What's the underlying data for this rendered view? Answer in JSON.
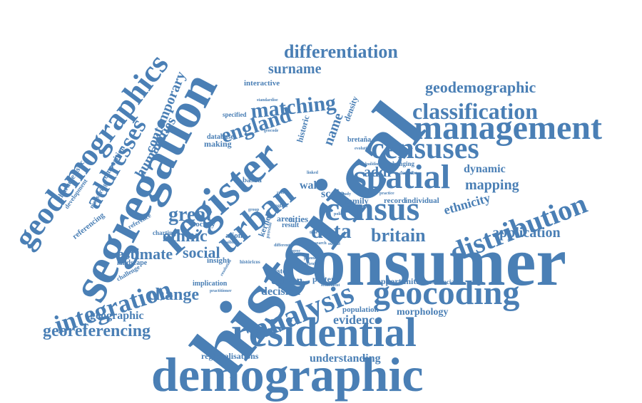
{
  "colors": {
    "text": "#4a7fb5",
    "background": "#ffffff"
  },
  "words": {
    "historical": "historical",
    "consumer": "consumer",
    "segregation": "segregation",
    "register": "register",
    "demographic": "demographic",
    "residential": "residential",
    "geodemographics": "geodemographics",
    "management": "management",
    "census": "census",
    "spatial": "spatial",
    "censuses": "censuses",
    "geocoding": "geocoding",
    "analysis": "analysis",
    "urban": "urban",
    "distribution": "distribution",
    "integration": "integration",
    "classification": "classification",
    "addresses": "addresses",
    "matching": "matching",
    "differentiation": "differentiation",
    "geodemographic": "geodemographic",
    "georeferencing": "georeferencing",
    "data": "data",
    "england": "england",
    "britain": "britain",
    "ethnic": "ethnic",
    "great": "great",
    "social": "social",
    "estimate": "estimate",
    "change": "change",
    "application": "application",
    "mapping": "mapping",
    "ethnicity": "ethnicity",
    "contemporary": "contemporary",
    "humanities": "humanities",
    "surname": "surname",
    "name": "name",
    "dynamic": "dynamic",
    "geographic": "geographic",
    "evidence": "evidence",
    "understanding": "understanding",
    "morphology": "morphology",
    "regionalisations": "regionalisations",
    "opportunities": "opportunities",
    "driven": "driven",
    "decision": "decision",
    "pattern": "pattern",
    "population": "population",
    "addr": "addr",
    "wale": "wale",
    "scale": "scale",
    "cities": "cities",
    "family": "family",
    "record": "record",
    "individual": "individual",
    "interactive": "interactive",
    "historic": "historic",
    "density": "density",
    "characteristic": "characteristic",
    "composition": "composition",
    "development": "development",
    "measuring": "measuring",
    "referencing": "referencing",
    "database": "database",
    "making": "making",
    "specified": "specified",
    "based": "based",
    "society": "society",
    "ation": "ation",
    "insight": "insight",
    "landscape": "landscape",
    "challenge": "challenge",
    "charting": "charting",
    "reference": "reference",
    "implication": "implication",
    "kernel": "kernel",
    "area": "area",
    "result": "result",
    "system": "system",
    "residenciales": "residenciales",
    "bretana": "bretaña",
    "changing": "changing",
    "describe": "describe",
    "building": "building",
    "evolution": "evolution",
    "standardise": "standardise",
    "geocode": "geocode",
    "english": "english",
    "practice": "practice",
    "different": "different",
    "planning": "planning",
    "potential": "potential",
    "research": "research",
    "settlement": "settlement",
    "historicos": "históricos",
    "policy": "policy",
    "feasible": "feasible",
    "year": "year",
    "group": "group",
    "provide": "provide",
    "time": "time",
    "study": "study",
    "linked": "linked",
    "degree": "degree",
    "output": "output",
    "resolution": "resolution",
    "practitioner": "practitioner"
  }
}
